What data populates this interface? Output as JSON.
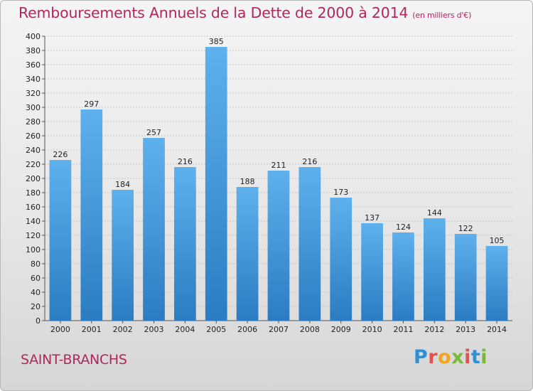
{
  "title": "Remboursements Annuels de la Dette de 2000 à 2014",
  "subtitle": "(en milliers d'€)",
  "commune": "SAINT-BRANCHS",
  "brand": {
    "letters": [
      "P",
      "r",
      "o",
      "x",
      "i",
      "t",
      "i"
    ]
  },
  "colors": {
    "title": "#b0265e",
    "bar_top": "#5eb1ec",
    "bar_bottom": "#2b7cc2"
  },
  "chart_data": {
    "type": "bar",
    "title": "Remboursements Annuels de la Dette de 2000 à 2014",
    "subtitle": "(en milliers d'€)",
    "categories": [
      "2000",
      "2001",
      "2002",
      "2003",
      "2004",
      "2005",
      "2006",
      "2007",
      "2008",
      "2009",
      "2010",
      "2011",
      "2012",
      "2013",
      "2014"
    ],
    "values": [
      226,
      297,
      184,
      257,
      216,
      385,
      188,
      211,
      216,
      173,
      137,
      124,
      144,
      122,
      105
    ],
    "ylim": [
      0,
      400
    ],
    "yticks": [
      0,
      20,
      40,
      60,
      80,
      100,
      120,
      140,
      160,
      180,
      200,
      220,
      240,
      260,
      280,
      300,
      320,
      340,
      360,
      380,
      400
    ],
    "grid": true,
    "legend": "none"
  }
}
